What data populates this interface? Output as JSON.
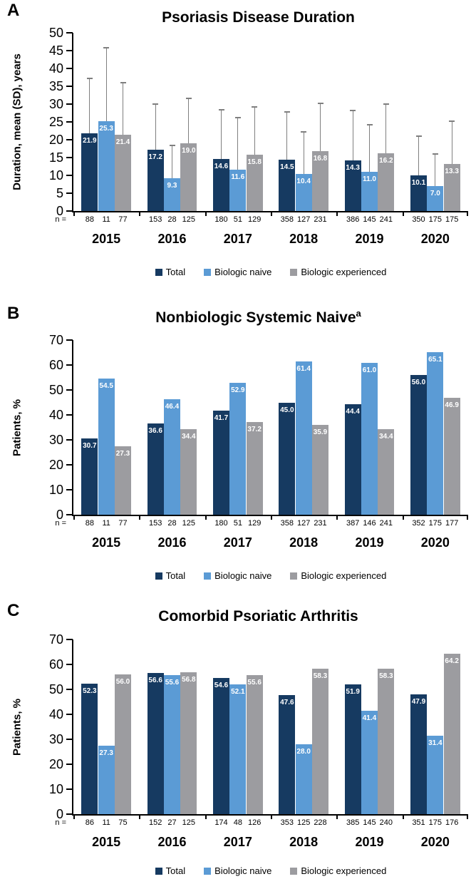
{
  "figure": {
    "legend": [
      "Total",
      "Biologic naive",
      "Biologic experienced"
    ],
    "series_colors": [
      "#163A61",
      "#5B9BD5",
      "#9C9CA0"
    ],
    "error_bar_color": "#7F7F7F",
    "n_prefix": "n ="
  },
  "chart_data": [
    {
      "panel": "A",
      "type": "bar",
      "title": "Psoriasis Disease Duration",
      "title_superscript": "",
      "ylabel": "Duration, mean (SD), years",
      "ylim": [
        0,
        50
      ],
      "ytick_step": 5,
      "grid": false,
      "legend_position": "bottom",
      "categories": [
        "2015",
        "2016",
        "2017",
        "2018",
        "2019",
        "2020"
      ],
      "error_bars": true,
      "series": [
        {
          "name": "Total",
          "values": [
            21.9,
            17.2,
            14.6,
            14.5,
            14.3,
            10.1
          ],
          "sd": [
            15.4,
            12.8,
            13.9,
            13.4,
            13.9,
            11.0
          ],
          "n": [
            88,
            153,
            180,
            358,
            386,
            350
          ]
        },
        {
          "name": "Biologic naive",
          "values": [
            25.3,
            9.3,
            11.6,
            10.4,
            11.0,
            7.0
          ],
          "sd": [
            20.5,
            9.1,
            14.7,
            11.8,
            13.3,
            9.1
          ],
          "n": [
            11,
            28,
            51,
            127,
            145,
            175
          ]
        },
        {
          "name": "Biologic experienced",
          "values": [
            21.4,
            19.0,
            15.8,
            16.8,
            16.2,
            13.3
          ],
          "sd": [
            14.6,
            12.6,
            13.4,
            13.5,
            13.9,
            11.9
          ],
          "n": [
            77,
            125,
            129,
            231,
            241,
            175
          ]
        }
      ]
    },
    {
      "panel": "B",
      "type": "bar",
      "title": "Nonbiologic Systemic Naive",
      "title_superscript": "a",
      "ylabel": "Patients, %",
      "ylim": [
        0,
        70
      ],
      "ytick_step": 10,
      "grid": false,
      "legend_position": "bottom",
      "categories": [
        "2015",
        "2016",
        "2017",
        "2018",
        "2019",
        "2020"
      ],
      "error_bars": false,
      "series": [
        {
          "name": "Total",
          "values": [
            30.7,
            36.6,
            41.7,
            45.0,
            44.4,
            56.0
          ],
          "n": [
            88,
            153,
            180,
            358,
            387,
            352
          ]
        },
        {
          "name": "Biologic naive",
          "values": [
            54.5,
            46.4,
            52.9,
            61.4,
            61.0,
            65.1
          ],
          "n": [
            11,
            28,
            51,
            127,
            146,
            175
          ]
        },
        {
          "name": "Biologic experienced",
          "values": [
            27.3,
            34.4,
            37.2,
            35.9,
            34.4,
            46.9
          ],
          "n": [
            77,
            125,
            129,
            231,
            241,
            177
          ]
        }
      ]
    },
    {
      "panel": "C",
      "type": "bar",
      "title": "Comorbid Psoriatic Arthritis",
      "title_superscript": "",
      "ylabel": "Patients, %",
      "ylim": [
        0,
        70
      ],
      "ytick_step": 10,
      "grid": false,
      "legend_position": "bottom",
      "categories": [
        "2015",
        "2016",
        "2017",
        "2018",
        "2019",
        "2020"
      ],
      "error_bars": false,
      "series": [
        {
          "name": "Total",
          "values": [
            52.3,
            56.6,
            54.6,
            47.6,
            51.9,
            47.9
          ],
          "n": [
            86,
            152,
            174,
            353,
            385,
            351
          ]
        },
        {
          "name": "Biologic naive",
          "values": [
            27.3,
            55.6,
            52.1,
            28.0,
            41.4,
            31.4
          ],
          "n": [
            11,
            27,
            48,
            125,
            145,
            175
          ]
        },
        {
          "name": "Biologic experienced",
          "values": [
            56.0,
            56.8,
            55.6,
            58.3,
            58.3,
            64.2
          ],
          "n": [
            75,
            125,
            126,
            228,
            240,
            176
          ]
        }
      ]
    }
  ]
}
